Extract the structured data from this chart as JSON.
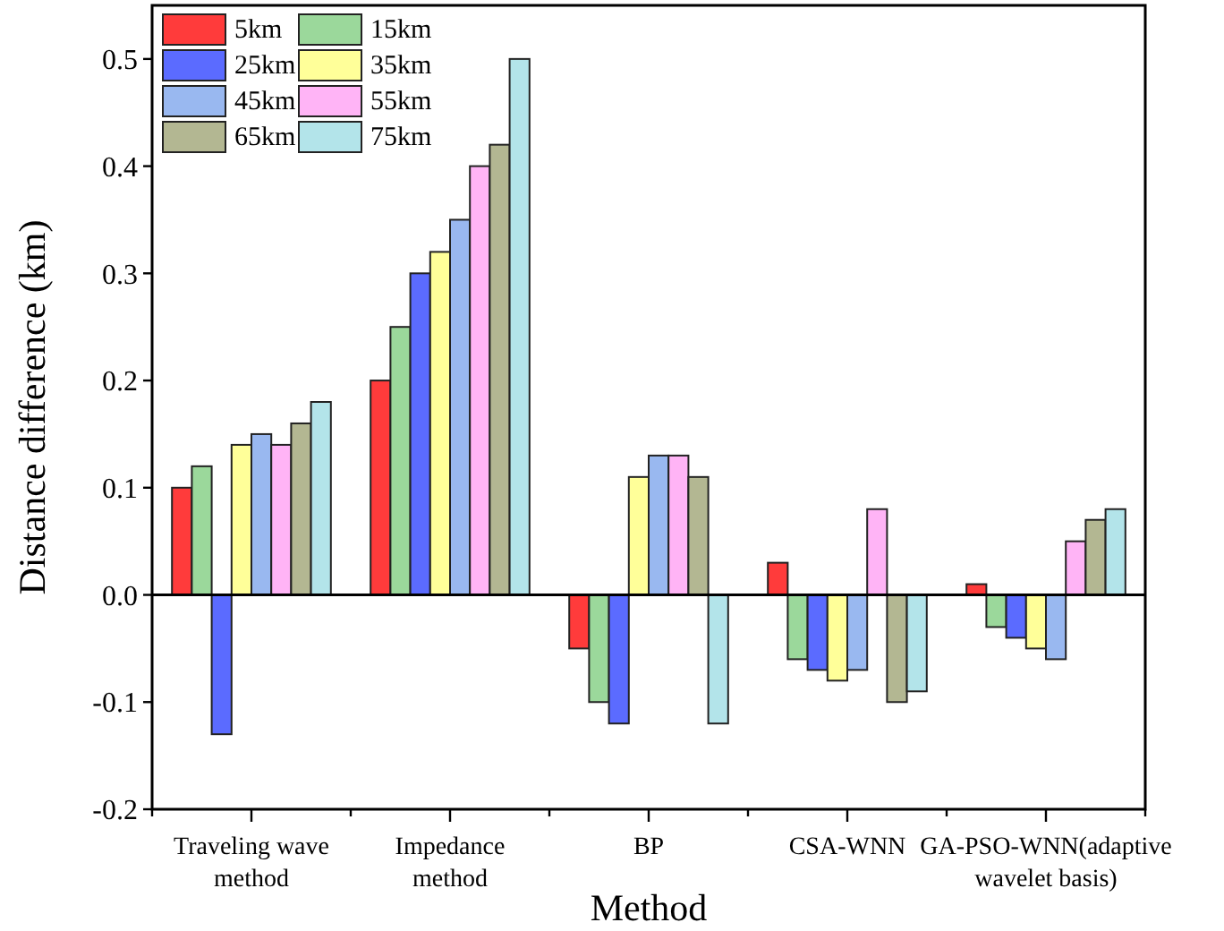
{
  "chart_data": {
    "type": "bar",
    "xlabel": "Method",
    "ylabel": "Distance difference (km)",
    "categories": [
      "Traveling wave\nmethod",
      "Impedance\nmethod",
      "BP",
      "CSA-WNN",
      "GA-PSO-WNN(adaptive\nwavelet basis)"
    ],
    "series": [
      {
        "name": "5km",
        "color": "#ff3b3b",
        "values": [
          0.1,
          0.2,
          -0.05,
          0.03,
          0.01
        ]
      },
      {
        "name": "15km",
        "color": "#9bd89b",
        "values": [
          0.12,
          0.25,
          -0.1,
          -0.06,
          -0.03
        ]
      },
      {
        "name": "25km",
        "color": "#5b6bff",
        "values": [
          -0.13,
          0.3,
          -0.12,
          -0.07,
          -0.04
        ]
      },
      {
        "name": "35km",
        "color": "#ffff99",
        "values": [
          0.14,
          0.32,
          0.11,
          -0.08,
          -0.05
        ]
      },
      {
        "name": "45km",
        "color": "#99b8f0",
        "values": [
          0.15,
          0.35,
          0.13,
          -0.07,
          -0.06
        ]
      },
      {
        "name": "55km",
        "color": "#ffb4f6",
        "values": [
          0.14,
          0.4,
          0.13,
          0.08,
          0.05
        ]
      },
      {
        "name": "65km",
        "color": "#b3b792",
        "values": [
          0.16,
          0.42,
          0.11,
          -0.1,
          0.07
        ]
      },
      {
        "name": "75km",
        "color": "#b3e4ea",
        "values": [
          0.18,
          0.5,
          -0.12,
          -0.09,
          0.08
        ]
      }
    ],
    "ylim": [
      -0.2,
      0.55
    ],
    "yticks": [
      {
        "value": -0.2,
        "label": "-0.2"
      },
      {
        "value": -0.1,
        "label": "-0.1"
      },
      {
        "value": 0,
        "label": "0.0"
      },
      {
        "value": 0.1,
        "label": "0.1"
      },
      {
        "value": 0.2,
        "label": "0.2"
      },
      {
        "value": 0.3,
        "label": "0.3"
      },
      {
        "value": 0.4,
        "label": "0.4"
      },
      {
        "value": 0.5,
        "label": "0.5"
      }
    ],
    "legend": "top left"
  }
}
